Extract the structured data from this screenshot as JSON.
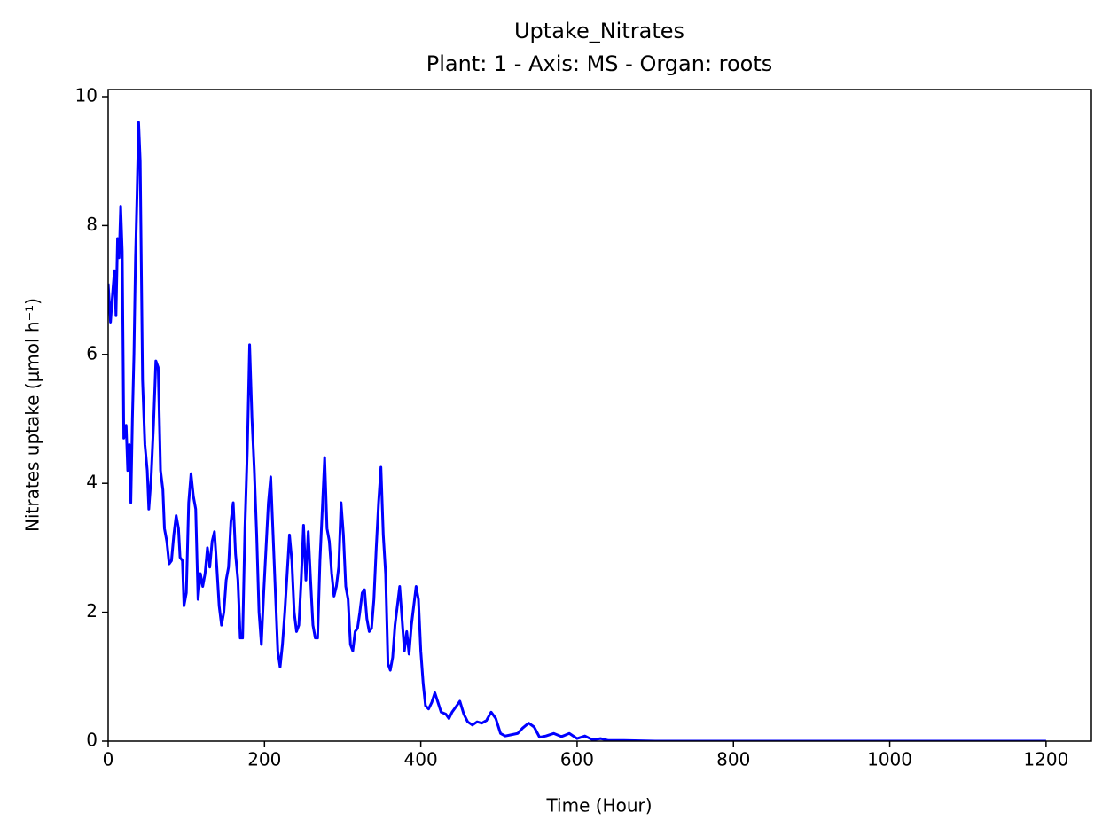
{
  "chart_data": {
    "type": "line",
    "title": "Uptake_Nitrates",
    "subtitle": "Plant: 1 - Axis: MS - Organ: roots",
    "x_label": "Time (Hour)",
    "y_label": "Nitrates uptake (μmol h⁻¹)",
    "xlim": [
      0,
      1258
    ],
    "ylim": [
      0,
      10.11
    ],
    "xticks": [
      0,
      200,
      400,
      600,
      800,
      1000,
      1200
    ],
    "yticks": [
      0,
      2,
      4,
      6,
      8,
      10
    ],
    "grid": false,
    "x": [
      0,
      3,
      6,
      8,
      10,
      12,
      14,
      16,
      18,
      20,
      23,
      25,
      27,
      29,
      31,
      33,
      35,
      37,
      39,
      41,
      44,
      47,
      50,
      52,
      55,
      58,
      61,
      64,
      67,
      70,
      72,
      75,
      78,
      81,
      84,
      87,
      90,
      92,
      95,
      97,
      100,
      103,
      106,
      109,
      112,
      115,
      118,
      121,
      124,
      127,
      130,
      133,
      136,
      139,
      142,
      145,
      148,
      151,
      154,
      157,
      160,
      163,
      166,
      169,
      172,
      175,
      178,
      181,
      184,
      187,
      190,
      193,
      196,
      199,
      202,
      205,
      208,
      211,
      214,
      217,
      220,
      223,
      226,
      229,
      232,
      235,
      238,
      241,
      244,
      247,
      250,
      253,
      256,
      259,
      262,
      265,
      268,
      271,
      274,
      277,
      280,
      283,
      286,
      289,
      292,
      295,
      298,
      301,
      304,
      307,
      310,
      313,
      316,
      319,
      322,
      325,
      328,
      331,
      334,
      337,
      340,
      343,
      346,
      349,
      352,
      355,
      358,
      361,
      364,
      367,
      370,
      373,
      376,
      379,
      382,
      385,
      388,
      391,
      394,
      397,
      400,
      403,
      406,
      410,
      414,
      418,
      422,
      426,
      432,
      436,
      440,
      446,
      450,
      455,
      460,
      466,
      472,
      478,
      484,
      490,
      496,
      502,
      508,
      516,
      524,
      530,
      538,
      545,
      552,
      560,
      570,
      580,
      590,
      600,
      610,
      620,
      630,
      640,
      660,
      700,
      800,
      900,
      1000,
      1100,
      1200
    ],
    "series": [
      {
        "name": "Uptake_Nitrates",
        "color": "#0000ff",
        "values": [
          7.1,
          6.5,
          7.0,
          7.3,
          6.6,
          7.8,
          7.5,
          8.3,
          7.6,
          4.7,
          4.9,
          4.2,
          4.6,
          3.7,
          5.0,
          6.0,
          7.5,
          8.5,
          9.6,
          9.0,
          5.6,
          4.6,
          4.2,
          3.6,
          4.1,
          4.9,
          5.9,
          5.8,
          4.2,
          3.9,
          3.3,
          3.1,
          2.75,
          2.8,
          3.2,
          3.5,
          3.3,
          2.85,
          2.8,
          2.1,
          2.3,
          3.7,
          4.15,
          3.8,
          3.6,
          2.2,
          2.6,
          2.4,
          2.6,
          3.0,
          2.7,
          3.1,
          3.25,
          2.7,
          2.1,
          1.8,
          2.0,
          2.5,
          2.7,
          3.4,
          3.7,
          2.9,
          2.5,
          1.6,
          1.6,
          3.3,
          4.5,
          6.15,
          5.0,
          4.2,
          3.2,
          2.0,
          1.5,
          2.3,
          3.0,
          3.7,
          4.1,
          3.2,
          2.3,
          1.4,
          1.15,
          1.5,
          2.0,
          2.6,
          3.2,
          2.8,
          2.0,
          1.7,
          1.8,
          2.5,
          3.35,
          2.5,
          3.25,
          2.5,
          1.8,
          1.6,
          1.6,
          2.8,
          3.6,
          4.4,
          3.3,
          3.1,
          2.6,
          2.25,
          2.4,
          2.7,
          3.7,
          3.2,
          2.4,
          2.2,
          1.5,
          1.4,
          1.7,
          1.75,
          2.0,
          2.3,
          2.35,
          1.9,
          1.7,
          1.75,
          2.2,
          3.0,
          3.7,
          4.25,
          3.2,
          2.6,
          1.2,
          1.1,
          1.3,
          1.8,
          2.1,
          2.4,
          1.9,
          1.4,
          1.7,
          1.35,
          1.8,
          2.1,
          2.4,
          2.2,
          1.4,
          0.9,
          0.55,
          0.5,
          0.6,
          0.75,
          0.6,
          0.45,
          0.42,
          0.35,
          0.45,
          0.55,
          0.62,
          0.42,
          0.3,
          0.25,
          0.3,
          0.28,
          0.32,
          0.45,
          0.35,
          0.12,
          0.08,
          0.1,
          0.12,
          0.2,
          0.28,
          0.22,
          0.06,
          0.08,
          0.12,
          0.07,
          0.12,
          0.04,
          0.08,
          0.02,
          0.04,
          0.01,
          0.01,
          0,
          0,
          0,
          0,
          0,
          0
        ]
      }
    ]
  }
}
